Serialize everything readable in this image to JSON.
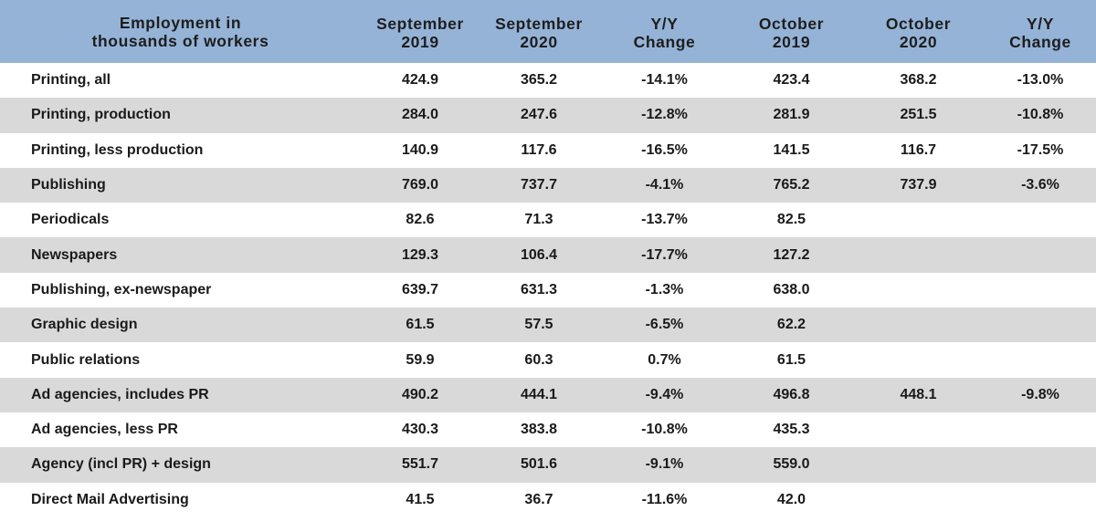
{
  "header": {
    "label_line1": "Employment in",
    "label_line2": "thousands of workers",
    "cols": [
      {
        "line1": "September",
        "line2": "2019"
      },
      {
        "line1": "September",
        "line2": "2020"
      },
      {
        "line1": "Y/Y",
        "line2": "Change"
      },
      {
        "line1": "October",
        "line2": "2019"
      },
      {
        "line1": "October",
        "line2": "2020"
      },
      {
        "line1": "Y/Y",
        "line2": "Change"
      }
    ]
  },
  "rows": [
    {
      "label": "Printing, all",
      "cells": [
        "424.9",
        "365.2",
        "-14.1%",
        "423.4",
        "368.2",
        "-13.0%"
      ]
    },
    {
      "label": "Printing, production",
      "cells": [
        "284.0",
        "247.6",
        "-12.8%",
        "281.9",
        "251.5",
        "-10.8%"
      ]
    },
    {
      "label": "Printing, less production",
      "cells": [
        "140.9",
        "117.6",
        "-16.5%",
        "141.5",
        "116.7",
        "-17.5%"
      ]
    },
    {
      "label": "Publishing",
      "cells": [
        "769.0",
        "737.7",
        "-4.1%",
        "765.2",
        "737.9",
        "-3.6%"
      ]
    },
    {
      "label": "Periodicals",
      "cells": [
        "82.6",
        "71.3",
        "-13.7%",
        "82.5",
        "",
        ""
      ]
    },
    {
      "label": "Newspapers",
      "cells": [
        "129.3",
        "106.4",
        "-17.7%",
        "127.2",
        "",
        ""
      ]
    },
    {
      "label": "Publishing, ex-newspaper",
      "cells": [
        "639.7",
        "631.3",
        "-1.3%",
        "638.0",
        "",
        ""
      ]
    },
    {
      "label": "Graphic design",
      "cells": [
        "61.5",
        "57.5",
        "-6.5%",
        "62.2",
        "",
        ""
      ]
    },
    {
      "label": "Public relations",
      "cells": [
        "59.9",
        "60.3",
        "0.7%",
        "61.5",
        "",
        ""
      ]
    },
    {
      "label": "Ad agencies, includes PR",
      "cells": [
        "490.2",
        "444.1",
        "-9.4%",
        "496.8",
        "448.1",
        "-9.8%"
      ]
    },
    {
      "label": "Ad agencies, less PR",
      "cells": [
        "430.3",
        "383.8",
        "-10.8%",
        "435.3",
        "",
        ""
      ]
    },
    {
      "label": "Agency (incl PR) + design",
      "cells": [
        "551.7",
        "501.6",
        "-9.1%",
        "559.0",
        "",
        ""
      ]
    },
    {
      "label": "Direct Mail Advertising",
      "cells": [
        "41.5",
        "36.7",
        "-11.6%",
        "42.0",
        "",
        ""
      ]
    }
  ],
  "colors": {
    "header_bg": "#95b3d7",
    "stripe": "#d9d9d9"
  }
}
